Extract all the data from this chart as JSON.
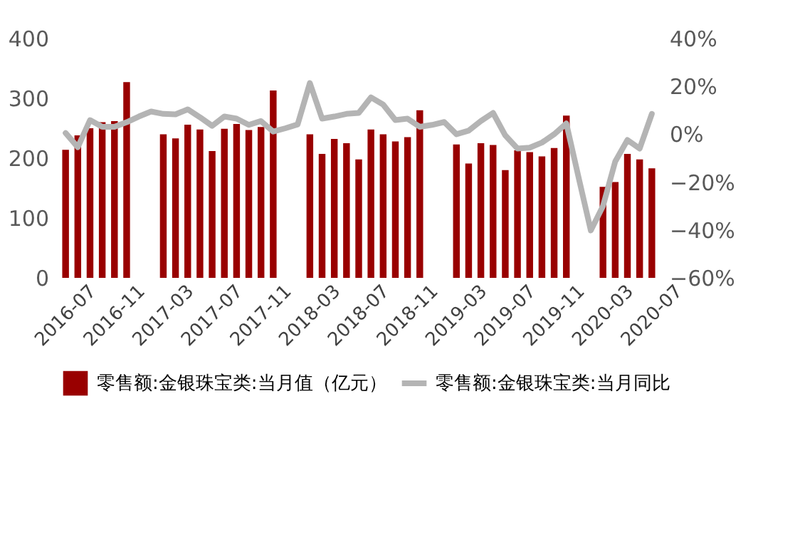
{
  "chart_data": {
    "type": "bar",
    "categories": [
      "2016-07",
      null,
      null,
      null,
      "2016-11",
      null,
      null,
      null,
      "2017-03",
      null,
      null,
      null,
      "2017-07",
      null,
      null,
      null,
      "2017-11",
      null,
      null,
      null,
      "2018-03",
      null,
      null,
      null,
      "2018-07",
      null,
      null,
      null,
      "2018-11",
      null,
      null,
      null,
      "2019-03",
      null,
      null,
      null,
      "2019-07",
      null,
      null,
      null,
      "2019-11",
      null,
      null,
      null,
      "2020-03",
      null,
      null,
      null,
      "2020-07"
    ],
    "series": [
      {
        "name": "零售额:金银珠宝类:当月值（亿元）",
        "color": "#990000",
        "values": [
          214,
          238,
          250,
          260,
          262,
          327,
          null,
          null,
          240,
          233,
          256,
          248,
          212,
          249,
          257,
          247,
          252,
          313,
          null,
          null,
          240,
          207,
          232,
          225,
          198,
          248,
          240,
          228,
          235,
          280,
          null,
          null,
          223,
          191,
          225,
          222,
          180,
          213,
          210,
          203,
          217,
          271,
          null,
          null,
          152,
          160,
          207,
          198,
          183
        ]
      },
      {
        "name": "零售额:金银珠宝类:当月同比",
        "type": "line",
        "axis": "y2",
        "color": "#b4b4b4",
        "values": [
          0.5,
          -5.4,
          5.9,
          3.1,
          3.1,
          5,
          7.4,
          9.5,
          8.5,
          8.3,
          10.4,
          7.1,
          3.5,
          7.4,
          6.5,
          3.9,
          5.5,
          1.1,
          2.5,
          4.1,
          21.4,
          6.5,
          7.4,
          8.5,
          8.9,
          15.4,
          12.4,
          5.9,
          6.5,
          3.1,
          3.9,
          5.1,
          0,
          1.5,
          5.5,
          8.9,
          -0.5,
          -6,
          -5.6,
          -3.5,
          0,
          4.5,
          -18,
          -40.2,
          -30,
          -11.4,
          -2.4,
          -6,
          8.5
        ]
      }
    ],
    "ylim": [
      0,
      400
    ],
    "yticks": [
      0,
      100,
      200,
      300,
      400
    ],
    "y2lim": [
      -60,
      40
    ],
    "y2ticks": [
      {
        "value": -60,
        "label": "−60%"
      },
      {
        "value": -40,
        "label": "−40%"
      },
      {
        "value": -20,
        "label": "−20%"
      },
      {
        "value": 0,
        "label": "0%"
      },
      {
        "value": 20,
        "label": "20%"
      },
      {
        "value": 40,
        "label": "40%"
      }
    ],
    "legend": "bottom",
    "grid": false
  }
}
